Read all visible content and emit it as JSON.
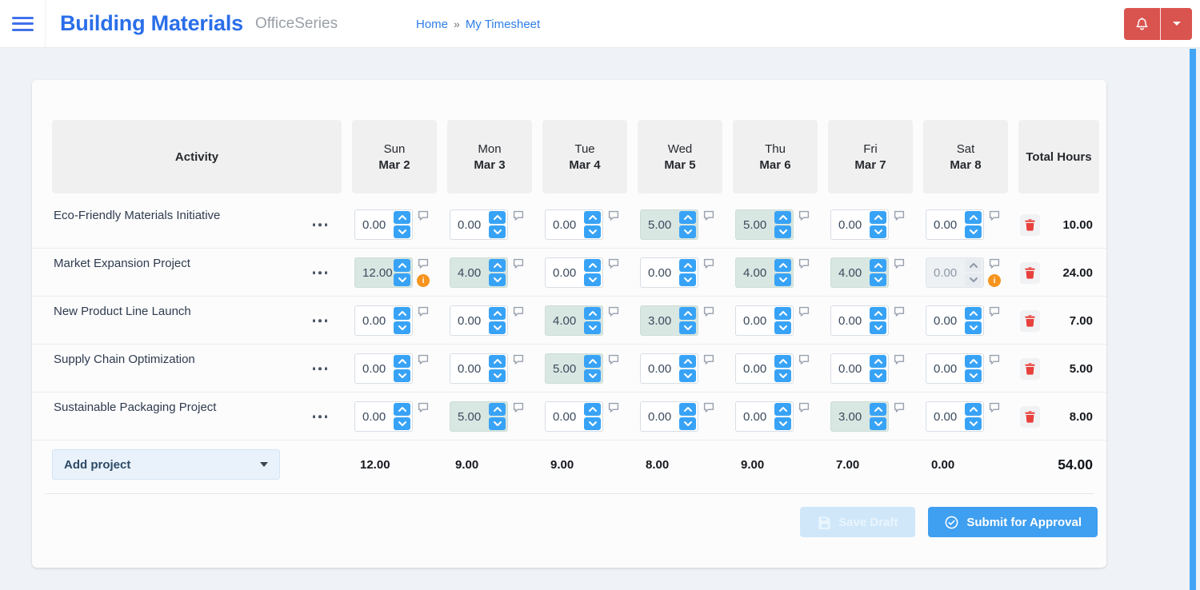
{
  "header": {
    "title": "Building Materials",
    "suite": "OfficeSeries",
    "breadcrumb": {
      "home": "Home",
      "separator": "»",
      "current": "My Timesheet"
    }
  },
  "icons": {
    "menu": "hamburger",
    "bell": "notification-bell",
    "caret": "caret-down",
    "row_menu": "ellipsis",
    "comment": "speech-bubble",
    "warning": "info-circle",
    "delete": "trash",
    "save": "floppy-disk",
    "submit": "check-circle"
  },
  "colors": {
    "brand_blue": "#2a6ee9",
    "accent_blue": "#38a3f6",
    "danger_red": "#d9534f",
    "warning_orange": "#f7941e",
    "highlight_teal": "#d8e7e2",
    "trash_red": "#e8403c",
    "scrollbar_blue": "#42a4f5",
    "submit_blue": "#3f9ff0",
    "save_disabled_blue": "#cfe7f9"
  },
  "timesheet": {
    "activity_header": "Activity",
    "total_header": "Total Hours",
    "columns": [
      {
        "day": "Sun",
        "date": "Mar 2"
      },
      {
        "day": "Mon",
        "date": "Mar 3"
      },
      {
        "day": "Tue",
        "date": "Mar 4"
      },
      {
        "day": "Wed",
        "date": "Mar 5"
      },
      {
        "day": "Thu",
        "date": "Mar 6"
      },
      {
        "day": "Fri",
        "date": "Mar 7"
      },
      {
        "day": "Sat",
        "date": "Mar 8"
      }
    ],
    "rows": [
      {
        "activity": "Eco-Friendly Materials Initiative",
        "values": [
          "0.00",
          "0.00",
          "0.00",
          "5.00",
          "5.00",
          "0.00",
          "0.00"
        ],
        "warnings": [],
        "disabled": [],
        "total": "10.00"
      },
      {
        "activity": "Market Expansion Project",
        "values": [
          "12.00",
          "4.00",
          "0.00",
          "0.00",
          "4.00",
          "4.00",
          "0.00"
        ],
        "warnings": [
          0,
          6
        ],
        "disabled": [
          6
        ],
        "total": "24.00"
      },
      {
        "activity": "New Product Line Launch",
        "values": [
          "0.00",
          "0.00",
          "4.00",
          "3.00",
          "0.00",
          "0.00",
          "0.00"
        ],
        "warnings": [],
        "disabled": [],
        "total": "7.00"
      },
      {
        "activity": "Supply Chain Optimization",
        "values": [
          "0.00",
          "0.00",
          "5.00",
          "0.00",
          "0.00",
          "0.00",
          "0.00"
        ],
        "warnings": [],
        "disabled": [],
        "total": "5.00"
      },
      {
        "activity": "Sustainable Packaging Project",
        "values": [
          "0.00",
          "5.00",
          "0.00",
          "0.00",
          "0.00",
          "3.00",
          "0.00"
        ],
        "warnings": [],
        "disabled": [],
        "total": "8.00"
      }
    ],
    "footer": {
      "add_project_label": "Add project",
      "day_totals": [
        "12.00",
        "9.00",
        "9.00",
        "8.00",
        "9.00",
        "7.00",
        "0.00"
      ],
      "grand_total": "54.00"
    },
    "actions": {
      "save_draft": "Save Draft",
      "submit": "Submit for Approval"
    }
  }
}
